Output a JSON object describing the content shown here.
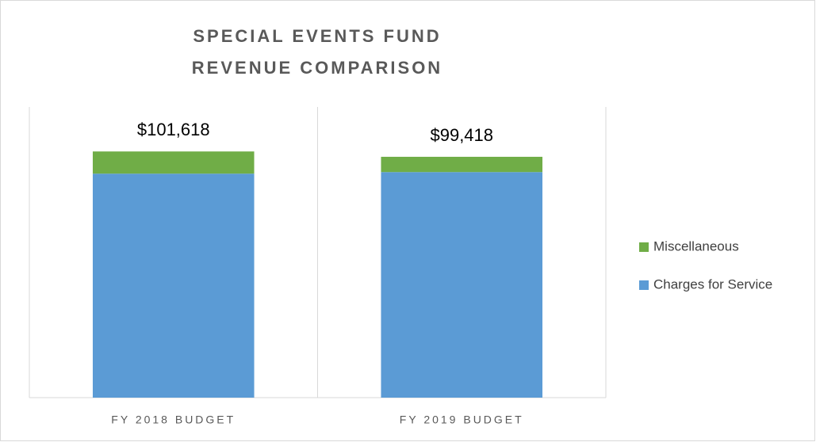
{
  "chart_data": {
    "type": "stacked_bar",
    "title": [
      "SPECIAL EVENTS FUND",
      "REVENUE COMPARISON"
    ],
    "categories": [
      "FY 2018 BUDGET",
      "FY 2019 BUDGET"
    ],
    "series": [
      {
        "name": "Charges for Service",
        "color": "#5b9bd5",
        "values": [
          92460,
          93110
        ]
      },
      {
        "name": "Miscellaneous",
        "color": "#70ad47",
        "values": [
          9158,
          6308
        ]
      }
    ],
    "totals": [
      101618,
      99418
    ],
    "total_labels": [
      "$101,618",
      "$99,418"
    ],
    "ylim": [
      0,
      120000
    ],
    "legend": "right"
  }
}
